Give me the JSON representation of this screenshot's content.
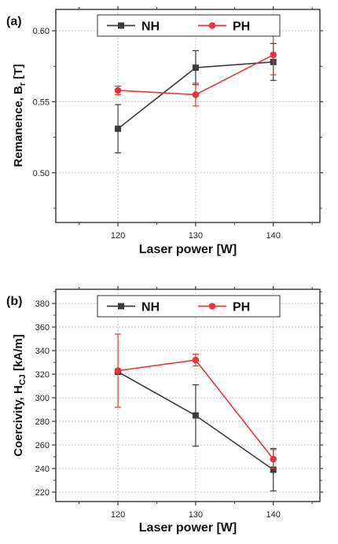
{
  "figure": {
    "panels": [
      {
        "label": "(a)"
      },
      {
        "label": "(b)"
      }
    ]
  },
  "chart_data": [
    {
      "type": "line",
      "panel_label": "(a)",
      "x": [
        120,
        130,
        140
      ],
      "xlabel": "Laser power [W]",
      "ylabel_main": "Remanence, B",
      "ylabel_sub": "r",
      "ylabel_unit": " [T]",
      "xlim": [
        112,
        146
      ],
      "ylim": [
        0.465,
        0.615
      ],
      "xticks": [
        120,
        130,
        140
      ],
      "yticks": [
        0.5,
        0.55,
        0.6
      ],
      "ytick_labels": [
        "0.50",
        "0.55",
        "0.60"
      ],
      "grid": true,
      "legend_position": "top",
      "series": [
        {
          "name": "NH",
          "color": "#3b3b3b",
          "marker": "square",
          "values": [
            0.531,
            0.574,
            0.578
          ],
          "errors": [
            0.017,
            0.012,
            0.013
          ]
        },
        {
          "name": "PH",
          "color": "#e8343c",
          "marker": "circle",
          "values": [
            0.558,
            0.555,
            0.583
          ],
          "errors": [
            0.003,
            0.008,
            0.014
          ]
        }
      ]
    },
    {
      "type": "line",
      "panel_label": "(b)",
      "x": [
        120,
        130,
        140
      ],
      "xlabel": "Laser power [W]",
      "ylabel_main": "Coercivity, H",
      "ylabel_sub": "CJ",
      "ylabel_unit": " [kA/m]",
      "xlim": [
        112,
        146
      ],
      "ylim": [
        212,
        392
      ],
      "xticks": [
        120,
        130,
        140
      ],
      "yticks": [
        220,
        240,
        260,
        280,
        300,
        320,
        340,
        360,
        380
      ],
      "ytick_labels": [
        "220",
        "240",
        "260",
        "280",
        "300",
        "320",
        "340",
        "360",
        "380"
      ],
      "grid": true,
      "legend_position": "top",
      "series": [
        {
          "name": "NH",
          "color": "#3b3b3b",
          "marker": "square",
          "values": [
            322,
            285,
            239
          ],
          "errors": [
            0,
            26,
            18
          ]
        },
        {
          "name": "PH",
          "color": "#e8343c",
          "marker": "circle",
          "values": [
            323,
            332,
            248
          ],
          "errors": [
            31,
            5,
            8
          ]
        }
      ]
    }
  ]
}
